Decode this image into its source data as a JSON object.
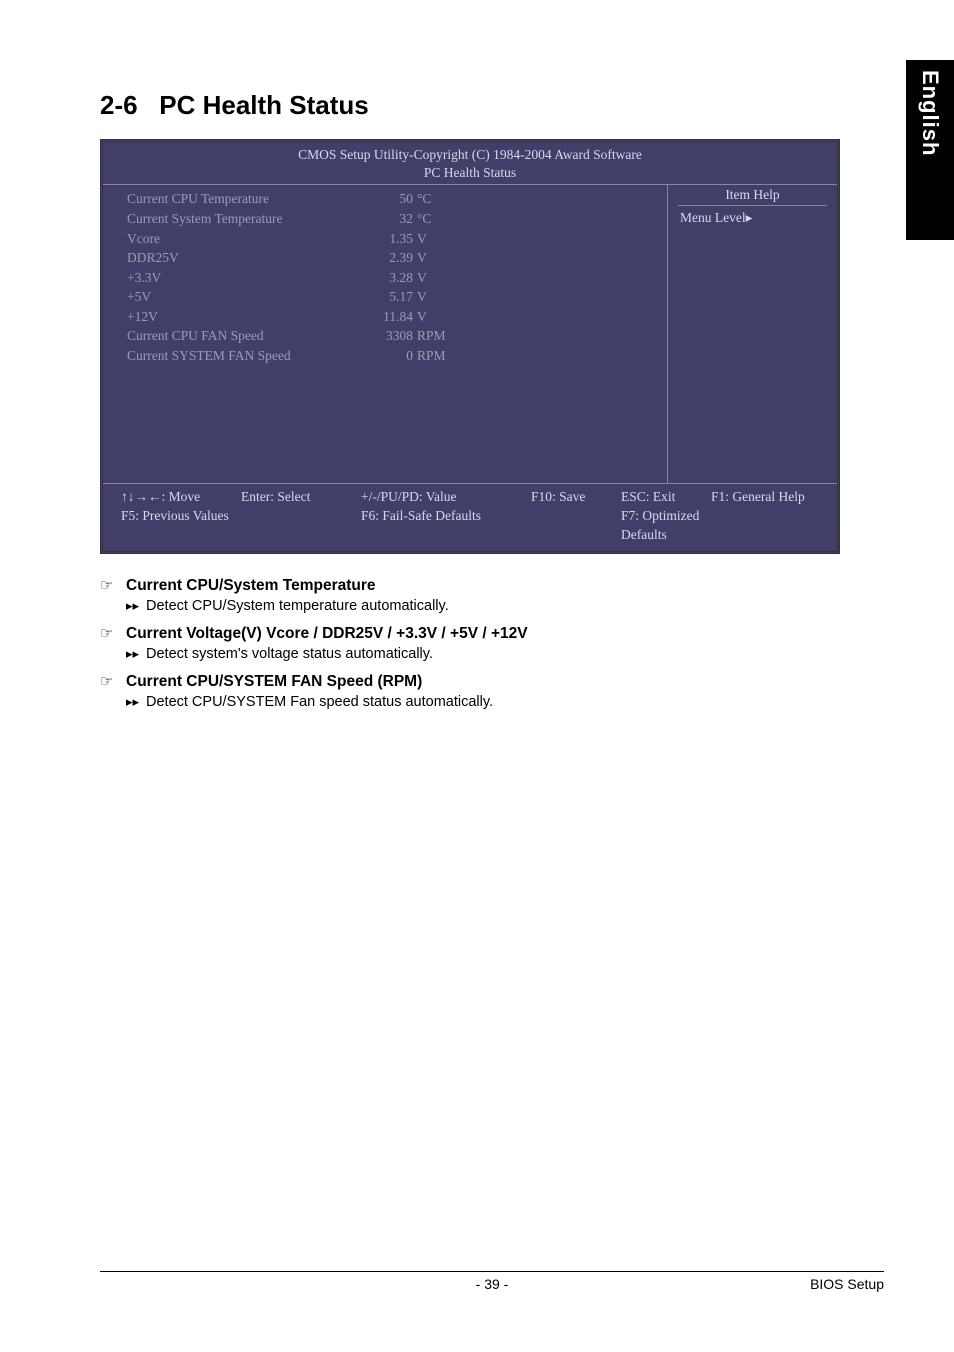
{
  "sideTab": "English",
  "sectionNumber": "2-6",
  "sectionTitle": "PC Health Status",
  "bios": {
    "headerLine1": "CMOS Setup Utility-Copyright (C) 1984-2004 Award Software",
    "headerLine2": "PC Health Status",
    "rows": [
      {
        "label": "Current CPU Temperature",
        "num": "50",
        "unit": "°C"
      },
      {
        "label": "Current System Temperature",
        "num": "32",
        "unit": "°C"
      },
      {
        "label": "Vcore",
        "num": "1.35",
        "unit": "V"
      },
      {
        "label": "DDR25V",
        "num": "2.39",
        "unit": "V"
      },
      {
        "label": "+3.3V",
        "num": "3.28",
        "unit": "V"
      },
      {
        "label": "+5V",
        "num": "5.17",
        "unit": "V"
      },
      {
        "label": "+12V",
        "num": "11.84",
        "unit": "V"
      },
      {
        "label": "Current CPU FAN Speed",
        "num": "3308",
        "unit": "RPM"
      },
      {
        "label": "Current SYSTEM FAN Speed",
        "num": "0",
        "unit": "RPM"
      }
    ],
    "itemHelp": "Item Help",
    "menuLevel": "Menu Level",
    "footer": {
      "move": "↑↓→←: Move",
      "f5": "F5: Previous Values",
      "enter": "Enter: Select",
      "pupd": "+/-/PU/PD: Value",
      "f6": "F6: Fail-Safe Defaults",
      "f10": "F10: Save",
      "esc": "ESC: Exit",
      "f7": "F7: Optimized Defaults",
      "f1": "F1: General Help"
    }
  },
  "desc": [
    {
      "title": "Current CPU/System Temperature",
      "body": "Detect CPU/System temperature automatically."
    },
    {
      "title": "Current Voltage(V) Vcore / DDR25V / +3.3V / +5V / +12V",
      "body": "Detect system's voltage status automatically."
    },
    {
      "title": "Current CPU/SYSTEM FAN Speed (RPM)",
      "body": "Detect CPU/SYSTEM Fan speed status automatically."
    }
  ],
  "footer": {
    "pageNum": "- 39 -",
    "right": "BIOS Setup"
  },
  "colors": {
    "biosBg": "#413f6a",
    "biosText": "#d9d7e8",
    "biosDim": "#9c9ab6"
  }
}
